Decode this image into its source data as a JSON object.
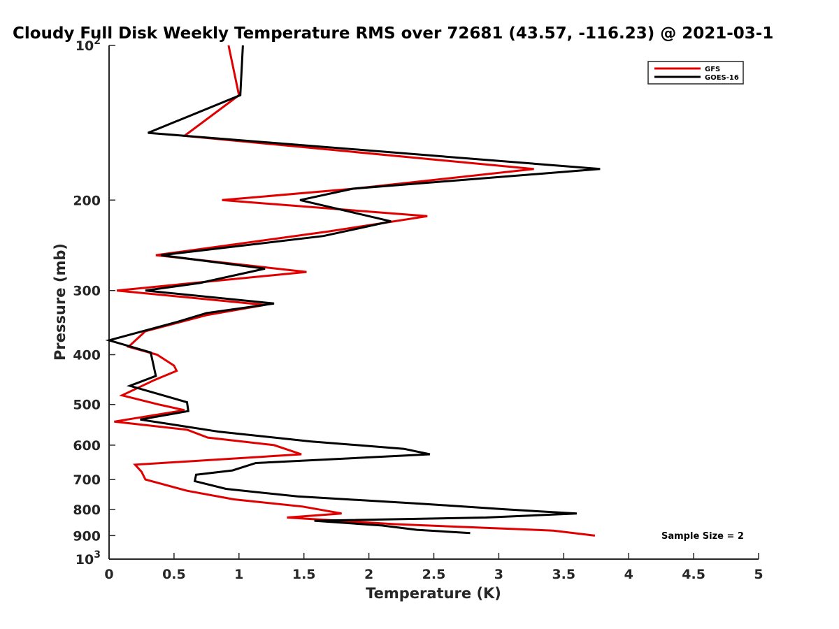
{
  "chart_data": {
    "type": "line",
    "title": "Cloudy Full Disk Weekly Temperature RMS over 72681 (43.57, -116.23) @ 2021-03-1",
    "xlabel": "Temperature (K)",
    "ylabel": "Pressure (mb)",
    "xlim": [
      0,
      5
    ],
    "ylim": [
      100,
      1000
    ],
    "y_scale": "log",
    "y_reversed": true,
    "x_ticks": [
      0,
      0.5,
      1,
      1.5,
      2,
      2.5,
      3,
      3.5,
      4,
      4.5,
      5
    ],
    "x_tick_labels": [
      "0",
      "0.5",
      "1",
      "1.5",
      "2",
      "2.5",
      "3",
      "3.5",
      "4",
      "4.5",
      "5"
    ],
    "y_ticks": [
      {
        "value": 100,
        "base": "10",
        "exp": "2"
      },
      {
        "value": 200,
        "label": "200"
      },
      {
        "value": 300,
        "label": "300"
      },
      {
        "value": 400,
        "label": "400"
      },
      {
        "value": 500,
        "label": "500"
      },
      {
        "value": 600,
        "label": "600"
      },
      {
        "value": 700,
        "label": "700"
      },
      {
        "value": 800,
        "label": "800"
      },
      {
        "value": 900,
        "label": "900"
      },
      {
        "value": 1000,
        "base": "10",
        "exp": "3"
      }
    ],
    "legend_position": "top-right",
    "grid": false,
    "annotation": "Sample Size = 2",
    "series": [
      {
        "name": "GFS",
        "color": "#e00000",
        "points": [
          [
            0.92,
            100
          ],
          [
            1.0,
            125
          ],
          [
            0.58,
            150
          ],
          [
            3.27,
            174
          ],
          [
            1.89,
            190
          ],
          [
            0.87,
            200
          ],
          [
            2.45,
            215
          ],
          [
            1.7,
            230
          ],
          [
            0.36,
            256
          ],
          [
            1.52,
            276
          ],
          [
            0.06,
            300
          ],
          [
            1.2,
            320
          ],
          [
            0.75,
            335
          ],
          [
            0.28,
            360
          ],
          [
            0.15,
            386
          ],
          [
            0.37,
            400
          ],
          [
            0.5,
            420
          ],
          [
            0.52,
            430
          ],
          [
            0.35,
            448
          ],
          [
            0.1,
            480
          ],
          [
            0.38,
            500
          ],
          [
            0.58,
            513
          ],
          [
            0.04,
            540
          ],
          [
            0.6,
            560
          ],
          [
            0.76,
            580
          ],
          [
            1.27,
            600
          ],
          [
            1.48,
            625
          ],
          [
            0.2,
            655
          ],
          [
            0.25,
            676
          ],
          [
            0.28,
            700
          ],
          [
            0.6,
            736
          ],
          [
            0.96,
            765
          ],
          [
            1.49,
            790
          ],
          [
            1.79,
            815
          ],
          [
            1.37,
            830
          ],
          [
            2.2,
            855
          ],
          [
            3.42,
            880
          ],
          [
            3.74,
            900
          ]
        ]
      },
      {
        "name": "GOES-16",
        "color": "#000000",
        "points": [
          [
            1.03,
            100
          ],
          [
            1.01,
            125
          ],
          [
            0.3,
            148
          ],
          [
            3.78,
            174
          ],
          [
            1.88,
            190
          ],
          [
            1.47,
            200
          ],
          [
            2.17,
            220
          ],
          [
            1.65,
            235
          ],
          [
            0.4,
            256
          ],
          [
            1.2,
            272
          ],
          [
            0.7,
            290
          ],
          [
            0.28,
            300
          ],
          [
            1.27,
            318
          ],
          [
            0.75,
            332
          ],
          [
            0.53,
            345
          ],
          [
            0.0,
            375
          ],
          [
            0.32,
            396
          ],
          [
            0.36,
            440
          ],
          [
            0.16,
            460
          ],
          [
            0.6,
            495
          ],
          [
            0.61,
            515
          ],
          [
            0.24,
            535
          ],
          [
            0.85,
            565
          ],
          [
            1.55,
            590
          ],
          [
            2.27,
            610
          ],
          [
            2.47,
            625
          ],
          [
            1.13,
            650
          ],
          [
            0.95,
            672
          ],
          [
            0.67,
            685
          ],
          [
            0.66,
            705
          ],
          [
            0.9,
            730
          ],
          [
            1.45,
            755
          ],
          [
            2.4,
            780
          ],
          [
            3.05,
            800
          ],
          [
            3.6,
            815
          ],
          [
            2.9,
            830
          ],
          [
            1.58,
            842
          ],
          [
            2.1,
            860
          ],
          [
            2.37,
            877
          ],
          [
            2.78,
            890
          ]
        ]
      }
    ]
  }
}
